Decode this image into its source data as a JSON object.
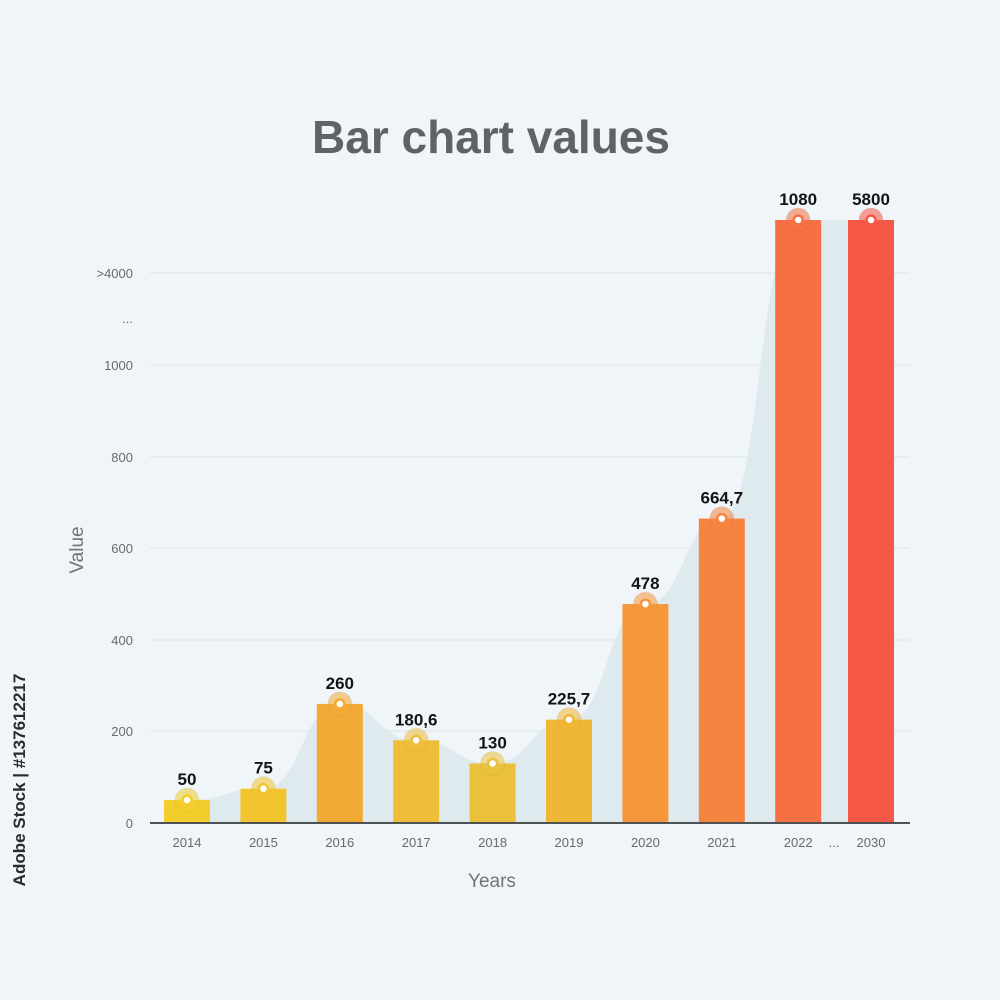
{
  "chart_data": {
    "type": "bar",
    "title": "Bar chart values",
    "xlabel": "Years",
    "ylabel": "Value",
    "categories": [
      "2014",
      "2015",
      "2016",
      "2017",
      "2018",
      "2019",
      "2020",
      "2021",
      "2022",
      "2030"
    ],
    "values": [
      50,
      75,
      260,
      180.6,
      130,
      225.7,
      478,
      664.7,
      1080,
      5800
    ],
    "value_labels": [
      "50",
      "75",
      "260",
      "180,6",
      "130",
      "225,7",
      "478",
      "664,7",
      "1080",
      "5800"
    ],
    "axis_break_label": "...",
    "yticks": [
      "0",
      "200",
      "400",
      "600",
      "800",
      "1000",
      "...",
      ">4000"
    ],
    "ylim": [
      0,
      1000
    ],
    "grid": true,
    "colors": [
      "#f2cd2c",
      "#f2c530",
      "#f3a935",
      "#eebe3a",
      "#ebc03c",
      "#f0b737",
      "#f7973b",
      "#f58441",
      "#f67042",
      "#f65848"
    ],
    "area_color": "#dfeaee"
  },
  "watermark": {
    "side_text": "Adobe Stock | #137612217"
  }
}
